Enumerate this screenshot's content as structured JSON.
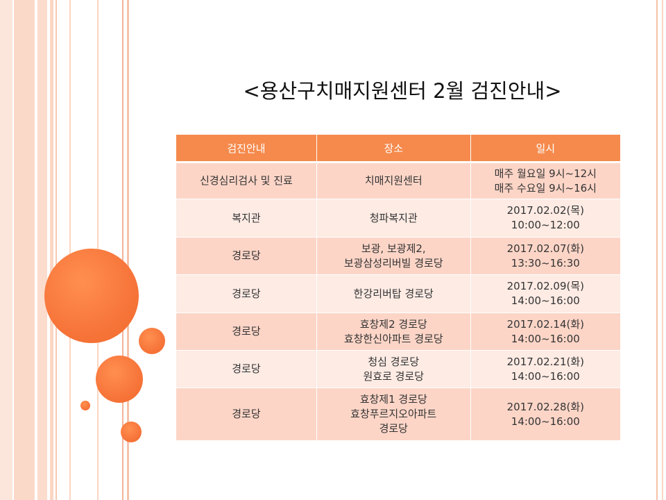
{
  "slide": {
    "title": "<용산구치매지원센터 2월 검진안내>"
  },
  "table": {
    "headers": [
      "검진안내",
      "장소",
      "일시"
    ],
    "rows": [
      {
        "type": "신경심리검사 및 진료",
        "place": [
          "치매지원센터"
        ],
        "time": [
          "매주 월요일 9시~12시",
          "매주 수요일 9시~16시"
        ]
      },
      {
        "type": "복지관",
        "place": [
          "청파복지관"
        ],
        "time": [
          "2017.02.02(목)",
          "10:00~12:00"
        ]
      },
      {
        "type": "경로당",
        "place": [
          "보광, 보광제2,",
          "보광삼성리버빌 경로당"
        ],
        "time": [
          "2017.02.07(화)",
          "13:30~16:30"
        ]
      },
      {
        "type": "경로당",
        "place": [
          "한강리버탑 경로당"
        ],
        "time": [
          "2017.02.09(목)",
          "14:00~16:00"
        ]
      },
      {
        "type": "경로당",
        "place": [
          "효창제2 경로당",
          "효창한신아파트 경로당"
        ],
        "time": [
          "2017.02.14(화)",
          "14:00~16:00"
        ]
      },
      {
        "type": "경로당",
        "place": [
          "청심 경로당",
          "원효로 경로당"
        ],
        "time": [
          "2017.02.21(화)",
          "14:00~16:00"
        ]
      },
      {
        "type": "경로당",
        "place": [
          "효창제1 경로당",
          "효창푸르지오아파트",
          "경로당"
        ],
        "time": [
          "2017.02.28(화)",
          "14:00~16:00"
        ]
      }
    ]
  },
  "colors": {
    "header": "#f58a4c",
    "row_dark": "#fcd5c7",
    "row_light": "#fdebe4",
    "accent_circle": "#f7753a"
  }
}
